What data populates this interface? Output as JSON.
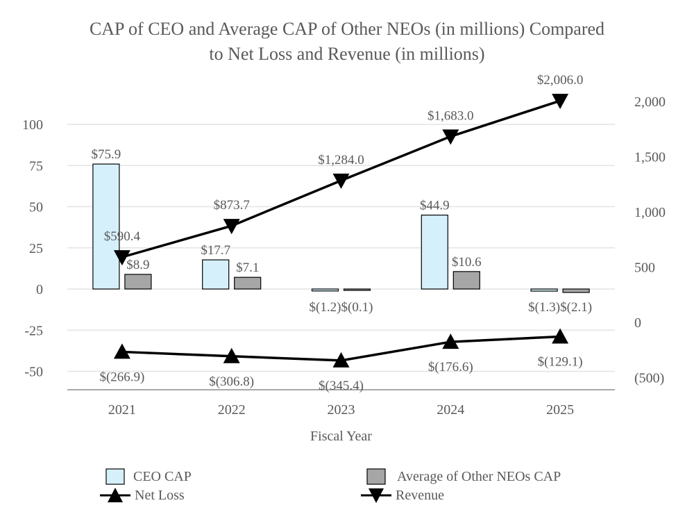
{
  "chart_data": {
    "type": "bar",
    "title_lines": [
      "CAP of CEO and Average CAP of Other NEOs (in millions) Compared",
      "to Net Loss and Revenue (in millions)"
    ],
    "xlabel": "Fiscal Year",
    "categories": [
      "2021",
      "2022",
      "2023",
      "2024",
      "2025"
    ],
    "left_axis": {
      "ylim": [
        -60,
        115
      ],
      "ticks": [
        100,
        75,
        50,
        25,
        0,
        -25,
        -50
      ],
      "tick_labels": [
        "100",
        "75",
        "50",
        "25",
        "0",
        "-25",
        "-50"
      ]
    },
    "right_axis": {
      "ylim": [
        -600,
        2000
      ],
      "ticks": [
        2000,
        1500,
        1000,
        500,
        0,
        -500
      ],
      "tick_labels": [
        "2,000",
        "1,500",
        "1,000",
        "500",
        "0",
        "(500)"
      ]
    },
    "grid": true,
    "legend_position": "bottom",
    "series": [
      {
        "name": "CEO CAP",
        "kind": "bar",
        "axis": "left",
        "color": "#d6f0fb",
        "stroke": "#000000",
        "values": [
          75.9,
          17.7,
          -1.2,
          44.9,
          -1.3
        ],
        "labels": [
          "$75.9",
          "$17.7",
          "$(1.2)",
          "$44.9",
          "$(1.3)"
        ]
      },
      {
        "name": "Average of Other NEOs CAP",
        "kind": "bar",
        "axis": "left",
        "color": "#a6a6a6",
        "stroke": "#000000",
        "values": [
          8.9,
          7.1,
          -0.1,
          10.6,
          -2.1
        ],
        "labels": [
          "$8.9",
          "$7.1",
          "$(0.1)",
          "$10.6",
          "$(2.1)"
        ]
      },
      {
        "name": "Net Loss",
        "kind": "line",
        "axis": "right",
        "marker": "triangle-up",
        "color": "#000000",
        "values": [
          -266.9,
          -306.8,
          -345.4,
          -176.6,
          -129.1
        ],
        "labels": [
          "$(266.9)",
          "$(306.8)",
          "$(345.4)",
          "$(176.6)",
          "$(129.1)"
        ]
      },
      {
        "name": "Revenue",
        "kind": "line",
        "axis": "right",
        "marker": "triangle-down",
        "color": "#000000",
        "values": [
          590.4,
          873.7,
          1284.0,
          1683.0,
          2006.0
        ],
        "labels": [
          "$590.4",
          "$873.7",
          "$1,284.0",
          "$1,683.0",
          "$2,006.0"
        ]
      }
    ]
  }
}
